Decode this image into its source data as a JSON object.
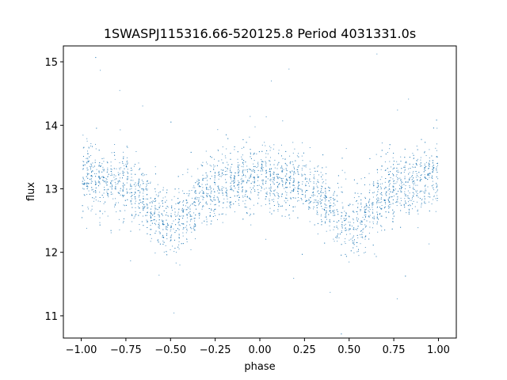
{
  "chart_data": {
    "type": "scatter",
    "title": "1SWASPJ115316.66-520125.8 Period 4031331.0s",
    "xlabel": "phase",
    "ylabel": "flux",
    "xlim": [
      -1.1,
      1.1
    ],
    "ylim": [
      10.65,
      15.25
    ],
    "x_ticks": [
      -1.0,
      -0.75,
      -0.5,
      -0.25,
      0.0,
      0.25,
      0.5,
      0.75,
      1.0
    ],
    "x_tick_labels": [
      "−1.00",
      "−0.75",
      "−0.50",
      "−0.25",
      "0.00",
      "0.25",
      "0.50",
      "0.75",
      "1.00"
    ],
    "y_ticks": [
      11,
      12,
      13,
      14,
      15
    ],
    "y_tick_labels": [
      "11",
      "12",
      "13",
      "14",
      "15"
    ],
    "grid": false,
    "legend": "none",
    "point_color": "#1f77b4",
    "phase_range": [
      -1.0,
      1.0
    ],
    "mean_curve": {
      "phase": [
        0.0,
        0.05,
        0.1,
        0.15,
        0.2,
        0.25,
        0.3,
        0.35,
        0.4,
        0.45,
        0.5,
        0.55,
        0.6,
        0.65,
        0.7,
        0.75,
        0.8,
        0.85,
        0.9,
        0.95,
        1.0
      ],
      "flux": [
        13.25,
        13.2,
        13.1,
        13.1,
        13.1,
        13.05,
        12.95,
        12.85,
        12.7,
        12.55,
        12.45,
        12.5,
        12.65,
        12.85,
        12.95,
        13.0,
        13.05,
        13.1,
        13.15,
        13.2,
        13.25
      ]
    },
    "scatter_sigma": 0.25
  }
}
